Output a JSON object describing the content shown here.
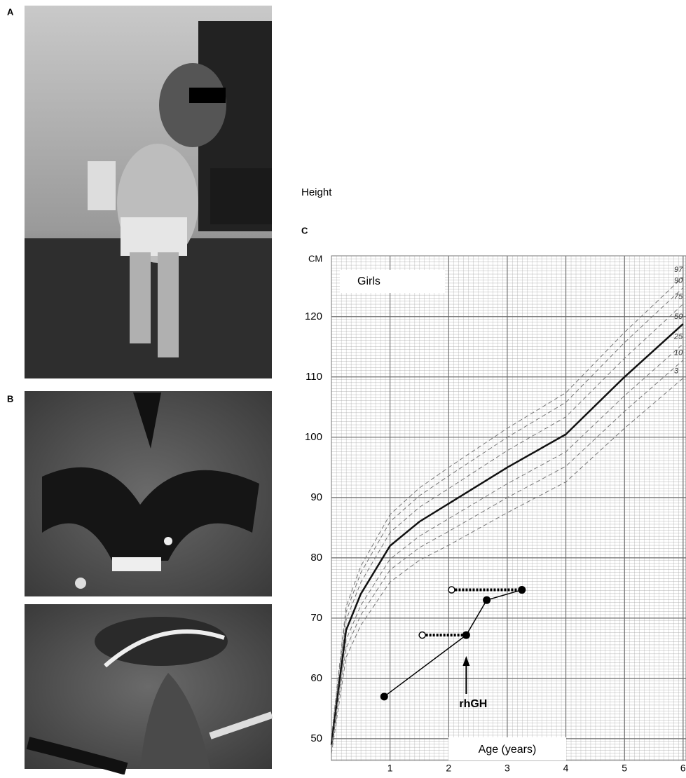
{
  "panel_labels": {
    "a": "A",
    "b": "B"
  },
  "chart_data": {
    "type": "line",
    "panel_label": "C",
    "title": "Height",
    "subtitle": "Girls",
    "y_label": "CM",
    "x_label": "Age (years)",
    "xlim": [
      0,
      6.05
    ],
    "ylim": [
      46.4,
      130.1
    ],
    "xticks": [
      1,
      2,
      3,
      4,
      5,
      6
    ],
    "yticks": [
      50,
      60,
      70,
      80,
      90,
      100,
      110,
      120
    ],
    "grid": true,
    "x": [
      0,
      0.25,
      0.5,
      1,
      1.5,
      2,
      3,
      4,
      5,
      6
    ],
    "series": [
      {
        "name": "97",
        "color": "#777777",
        "line_style": "dashed",
        "values": [
          50.3,
          71.9,
          78.6,
          87.2,
          91.6,
          95,
          101.5,
          107.4,
          117.4,
          126.6
        ]
      },
      {
        "name": "90",
        "color": "#777777",
        "line_style": "dashed",
        "values": [
          50,
          71,
          77.5,
          86,
          90.3,
          93.6,
          100,
          105.8,
          115.7,
          124.8
        ]
      },
      {
        "name": "75",
        "color": "#777777",
        "line_style": "dashed",
        "values": [
          49.6,
          69.7,
          75.9,
          84.2,
          88.4,
          91.5,
          97.8,
          103.4,
          113.1,
          122.1
        ]
      },
      {
        "name": "50",
        "color": "#111111",
        "line_style": "solid",
        "values": [
          49,
          68,
          74,
          82,
          86,
          89,
          95,
          100.5,
          110,
          118.8
        ]
      },
      {
        "name": "25",
        "color": "#777777",
        "line_style": "dashed",
        "values": [
          48.5,
          66.4,
          72.1,
          79.8,
          83.6,
          86.5,
          92.3,
          97.6,
          106.9,
          115.5
        ]
      },
      {
        "name": "10",
        "color": "#777777",
        "line_style": "dashed",
        "values": [
          48,
          65,
          70.5,
          78,
          81.7,
          84.4,
          90,
          95.2,
          104.3,
          112.8
        ]
      },
      {
        "name": "3",
        "color": "#777777",
        "line_style": "dashed",
        "values": [
          47.5,
          63.5,
          68.8,
          76,
          79.6,
          82.1,
          87.5,
          92.6,
          101.5,
          109.8
        ]
      }
    ],
    "patient": {
      "color": "#000000",
      "x": [
        0.9,
        2.3,
        2.65,
        3.25
      ],
      "values": [
        57,
        67.2,
        73,
        74.7
      ]
    },
    "bone_age": {
      "color": "#000000",
      "marker": "open",
      "x": [
        1.55,
        2.05
      ],
      "values": [
        67.2,
        74.7
      ]
    },
    "annotation": {
      "text": "rhGH",
      "x": 2.3
    }
  }
}
